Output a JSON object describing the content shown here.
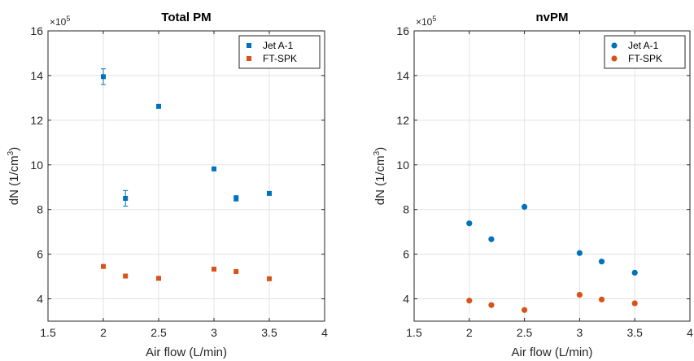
{
  "chart_data": [
    {
      "type": "scatter",
      "title": "Total PM",
      "xlabel": "Air flow (L/min)",
      "ylabel_main": "dN (1/cm",
      "ylabel_sup": "3",
      "ylabel_tail": ")",
      "exponent_base": "×10",
      "exponent_power": "5",
      "xlim": [
        1.5,
        4
      ],
      "ylim": [
        3,
        16
      ],
      "xticks": [
        "1.5",
        "2",
        "2.5",
        "3",
        "3.5",
        "4"
      ],
      "yticks": [
        "4",
        "6",
        "8",
        "10",
        "12",
        "14",
        "16"
      ],
      "grid": true,
      "legend_position": "top-right",
      "marker": "square",
      "series": [
        {
          "name": "Jet A-1",
          "color": "#0072BD",
          "x": [
            2,
            2.2,
            2.5,
            3,
            3.2,
            3.5
          ],
          "y": [
            13.95,
            8.5,
            12.62,
            9.82,
            8.5,
            8.72
          ],
          "err": [
            0.35,
            0.35,
            0.08,
            0.06,
            0.12,
            0.05
          ]
        },
        {
          "name": "FT-SPK",
          "color": "#D95319",
          "x": [
            2,
            2.2,
            2.5,
            3,
            3.2,
            3.5
          ],
          "y": [
            5.45,
            5.02,
            4.92,
            5.33,
            5.22,
            4.9
          ],
          "err": [
            0,
            0,
            0,
            0,
            0,
            0
          ]
        }
      ]
    },
    {
      "type": "scatter",
      "title": "nvPM",
      "xlabel": "Air flow (L/min)",
      "ylabel_main": "dN (1/cm",
      "ylabel_sup": "3",
      "ylabel_tail": ")",
      "exponent_base": "×10",
      "exponent_power": "5",
      "xlim": [
        1.5,
        4
      ],
      "ylim": [
        3,
        16
      ],
      "xticks": [
        "1.5",
        "2",
        "2.5",
        "3",
        "3.5",
        "4"
      ],
      "yticks": [
        "4",
        "6",
        "8",
        "10",
        "12",
        "14",
        "16"
      ],
      "grid": true,
      "legend_position": "top-right",
      "marker": "circle",
      "series": [
        {
          "name": "Jet A-1",
          "color": "#0072BD",
          "x": [
            2,
            2.2,
            2.5,
            3,
            3.2,
            3.5
          ],
          "y": [
            7.38,
            6.67,
            8.12,
            6.05,
            5.67,
            5.17
          ],
          "err": [
            0,
            0,
            0,
            0,
            0,
            0
          ]
        },
        {
          "name": "FT-SPK",
          "color": "#D95319",
          "x": [
            2,
            2.2,
            2.5,
            3,
            3.2,
            3.5
          ],
          "y": [
            3.92,
            3.72,
            3.5,
            4.18,
            3.97,
            3.8
          ],
          "err": [
            0,
            0,
            0,
            0,
            0,
            0
          ]
        }
      ]
    }
  ]
}
